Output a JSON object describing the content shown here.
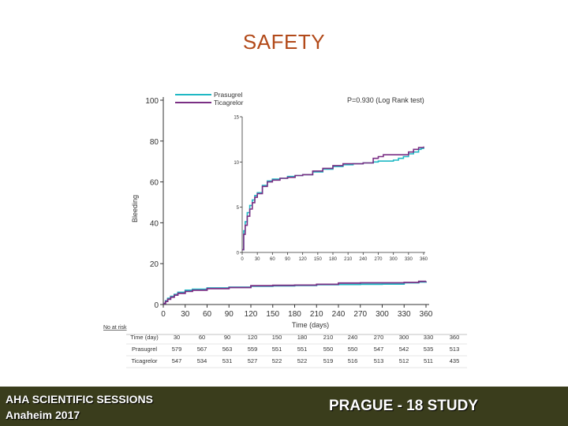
{
  "slide": {
    "title": "SAFETY"
  },
  "footer": {
    "conference_line1": "AHA SCIENTIFIC SESSIONS",
    "conference_line2": "Anaheim   2017",
    "study": "PRAGUE - 18 STUDY"
  },
  "colors": {
    "prasugrel": "#1fb8c4",
    "ticagrelor": "#7a2f84",
    "title": "#b24a1a",
    "footer_bg": "#3a3d1c"
  },
  "chart_data": [
    {
      "type": "line",
      "title": "",
      "annotation": "P=0.930 (Log Rank test)",
      "xlabel": "Time (days)",
      "ylabel": "Bleeding",
      "xlim": [
        0,
        360
      ],
      "ylim": [
        0,
        100
      ],
      "xticks": [
        "0",
        "30",
        "60",
        "90",
        "120",
        "150",
        "180",
        "210",
        "240",
        "270",
        "300",
        "330",
        "360"
      ],
      "yticks": [
        "0",
        "20",
        "40",
        "60",
        "80",
        "100"
      ],
      "legend": [
        "Prasugrel",
        "Ticagrelor"
      ],
      "series": [
        {
          "name": "Prasugrel",
          "x": [
            0,
            3,
            6,
            10,
            15,
            20,
            30,
            40,
            60,
            90,
            120,
            150,
            180,
            210,
            240,
            270,
            300,
            330,
            350,
            360
          ],
          "y": [
            0.5,
            1.8,
            3.0,
            4.0,
            5.0,
            6.0,
            7.0,
            7.5,
            8.1,
            8.5,
            8.9,
            9.1,
            9.3,
            9.7,
            9.8,
            9.9,
            10.0,
            10.6,
            11.0,
            11.2
          ]
        },
        {
          "name": "Ticagrelor",
          "x": [
            0,
            3,
            6,
            10,
            15,
            20,
            30,
            40,
            60,
            90,
            120,
            150,
            180,
            210,
            240,
            270,
            300,
            330,
            350,
            360
          ],
          "y": [
            0.5,
            1.5,
            2.6,
            3.6,
            4.6,
            5.5,
            6.4,
            7.0,
            7.8,
            8.3,
            9.2,
            9.4,
            9.5,
            9.9,
            10.5,
            10.6,
            10.6,
            10.8,
            11.3,
            11.4
          ]
        }
      ]
    },
    {
      "type": "line",
      "title": "inset",
      "xlim": [
        0,
        360
      ],
      "ylim": [
        0,
        15
      ],
      "xticks": [
        "0",
        "30",
        "60",
        "90",
        "120",
        "150",
        "180",
        "210",
        "240",
        "270",
        "300",
        "330",
        "360"
      ],
      "yticks": [
        "0",
        "5",
        "10",
        "15"
      ],
      "series": [
        {
          "name": "Prasugrel",
          "x": [
            0,
            3,
            6,
            10,
            15,
            20,
            25,
            30,
            40,
            50,
            60,
            75,
            90,
            105,
            120,
            140,
            160,
            180,
            200,
            220,
            240,
            260,
            270,
            280,
            300,
            310,
            320,
            330,
            340,
            350,
            355,
            360
          ],
          "y": [
            0.3,
            2.4,
            3.4,
            4.4,
            5.2,
            5.8,
            6.3,
            6.6,
            7.4,
            7.9,
            8.1,
            8.2,
            8.4,
            8.5,
            8.6,
            8.9,
            9.2,
            9.5,
            9.7,
            9.8,
            9.9,
            10.0,
            10.1,
            10.1,
            10.2,
            10.4,
            10.6,
            10.9,
            11.1,
            11.4,
            11.5,
            11.6
          ]
        },
        {
          "name": "Ticagrelor",
          "x": [
            0,
            3,
            6,
            10,
            15,
            20,
            25,
            30,
            40,
            50,
            60,
            75,
            90,
            105,
            120,
            140,
            160,
            180,
            200,
            220,
            240,
            260,
            270,
            280,
            300,
            310,
            320,
            330,
            340,
            350,
            355,
            360
          ],
          "y": [
            0.3,
            2.0,
            3.0,
            4.0,
            4.8,
            5.5,
            6.1,
            6.5,
            7.3,
            7.8,
            8.0,
            8.2,
            8.3,
            8.5,
            8.6,
            9.0,
            9.3,
            9.6,
            9.8,
            9.8,
            9.9,
            10.4,
            10.6,
            10.8,
            10.8,
            10.8,
            10.8,
            11.1,
            11.4,
            11.6,
            11.6,
            11.7
          ]
        }
      ]
    }
  ],
  "risk_table": {
    "label": "No at risk",
    "headers": [
      "Time (day)",
      "30",
      "60",
      "90",
      "120",
      "150",
      "180",
      "210",
      "240",
      "270",
      "300",
      "330",
      "360"
    ],
    "rows": [
      {
        "name": "Prasugrel",
        "values": [
          "579",
          "567",
          "563",
          "559",
          "551",
          "551",
          "550",
          "550",
          "547",
          "542",
          "535",
          "513"
        ]
      },
      {
        "name": "Ticagrelor",
        "values": [
          "547",
          "534",
          "531",
          "527",
          "522",
          "522",
          "519",
          "516",
          "513",
          "512",
          "511",
          "435"
        ]
      }
    ]
  }
}
